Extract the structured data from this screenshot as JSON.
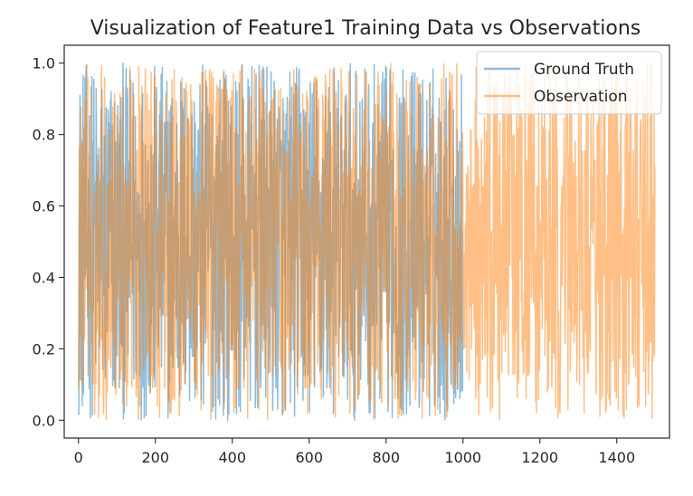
{
  "chart_data": {
    "type": "line",
    "title": "Visualization of Feature1 Training Data vs Observations",
    "xlabel": "",
    "ylabel": "",
    "xlim": [
      -37,
      1537
    ],
    "ylim": [
      -0.05,
      1.05
    ],
    "xticks": [
      0,
      200,
      400,
      600,
      800,
      1000,
      1200,
      1400
    ],
    "xtick_labels": [
      "0",
      "200",
      "400",
      "600",
      "800",
      "1000",
      "1200",
      "1400"
    ],
    "yticks": [
      0.0,
      0.2,
      0.4,
      0.6,
      0.8,
      1.0
    ],
    "ytick_labels": [
      "0.0",
      "0.2",
      "0.4",
      "0.6",
      "0.8",
      "1.0"
    ],
    "grid": false,
    "legend_position": "upper right",
    "series": [
      {
        "name": "Ground Truth",
        "color": "#1f77b4",
        "alpha": 0.5,
        "x_start": 0,
        "x_end": 999,
        "n_points": 1000,
        "value_min": 0.0,
        "value_max": 1.0,
        "description": "dense random noise between 0 and 1"
      },
      {
        "name": "Observation",
        "color": "#ff7f0e",
        "alpha": 0.5,
        "x_start": 0,
        "x_end": 1499,
        "n_points": 1500,
        "value_min": 0.0,
        "value_max": 1.0,
        "description": "dense random noise between 0 and 1"
      }
    ]
  }
}
